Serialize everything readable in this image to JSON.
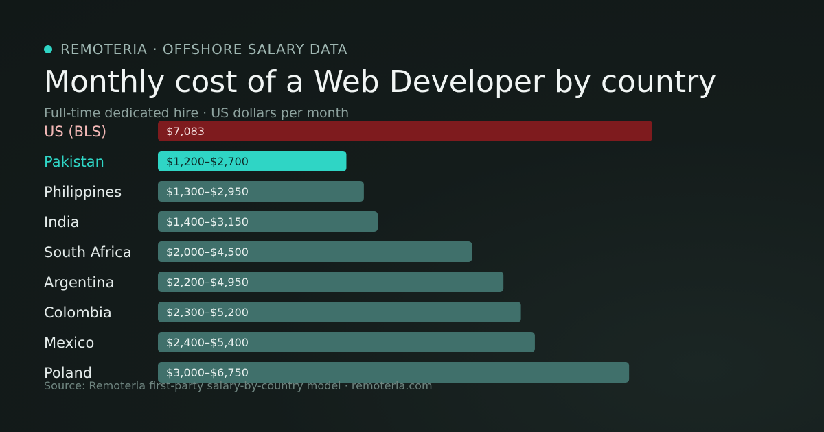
{
  "header": {
    "brand": "REMOTERIA · OFFSHORE SALARY DATA",
    "title": "Monthly cost of a Web Developer by country",
    "subtitle": "Full-time dedicated hire · US dollars per month"
  },
  "footer": {
    "source": "Source: Remoteria first-party salary-by-country model · remoteria.com"
  },
  "colors": {
    "us": "#7e1b1e",
    "us_label": "#f2b8b6",
    "highlight": "#2fd5c5",
    "highlight_text": "#0e2b28",
    "default": "#40706b",
    "default_label": "#e4ebea"
  },
  "chart_data": {
    "type": "bar",
    "orientation": "horizontal",
    "xlim": [
      0,
      7083
    ],
    "bars": [
      {
        "category": "US (BLS)",
        "label": "$7,083",
        "low": 7083,
        "high": 7083,
        "style": "us"
      },
      {
        "category": "Pakistan",
        "label": "$1,200–$2,700",
        "low": 1200,
        "high": 2700,
        "style": "highlight"
      },
      {
        "category": "Philippines",
        "label": "$1,300–$2,950",
        "low": 1300,
        "high": 2950,
        "style": "default"
      },
      {
        "category": "India",
        "label": "$1,400–$3,150",
        "low": 1400,
        "high": 3150,
        "style": "default"
      },
      {
        "category": "South Africa",
        "label": "$2,000–$4,500",
        "low": 2000,
        "high": 4500,
        "style": "default"
      },
      {
        "category": "Argentina",
        "label": "$2,200–$4,950",
        "low": 2200,
        "high": 4950,
        "style": "default"
      },
      {
        "category": "Colombia",
        "label": "$2,300–$5,200",
        "low": 2300,
        "high": 5200,
        "style": "default"
      },
      {
        "category": "Mexico",
        "label": "$2,400–$5,400",
        "low": 2400,
        "high": 5400,
        "style": "default"
      },
      {
        "category": "Poland",
        "label": "$3,000–$6,750",
        "low": 3000,
        "high": 6750,
        "style": "default"
      }
    ]
  }
}
